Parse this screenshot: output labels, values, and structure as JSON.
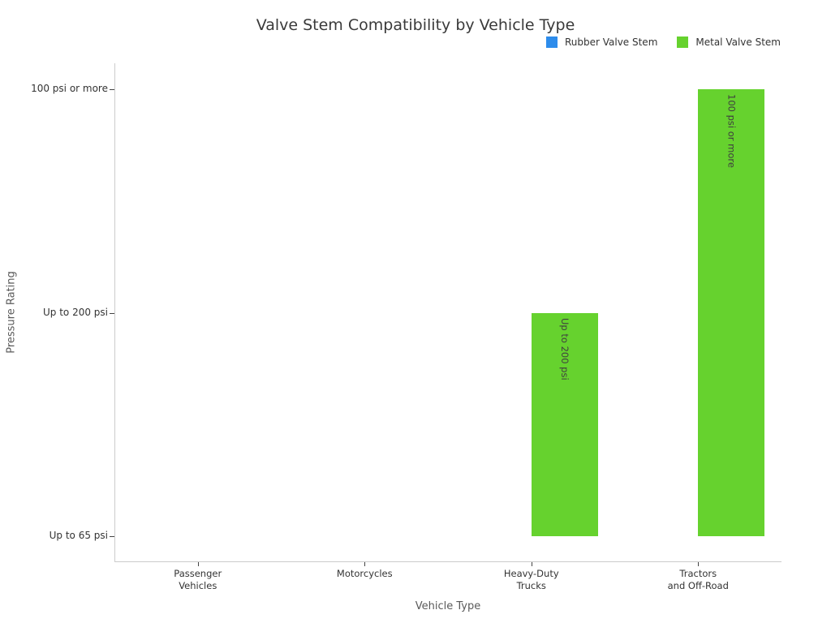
{
  "title": "Valve Stem Compatibility by Vehicle Type",
  "chart_data": {
    "type": "bar",
    "title": "Valve Stem Compatibility by Vehicle Type",
    "xlabel": "Vehicle Type",
    "ylabel": "Pressure Rating",
    "categories": [
      "Passenger Vehicles",
      "Motorcycles",
      "Heavy-Duty Trucks",
      "Tractors and Off-Road"
    ],
    "category_lines": [
      [
        "Passenger",
        "Vehicles"
      ],
      [
        "Motorcycles"
      ],
      [
        "Heavy-Duty",
        "Trucks"
      ],
      [
        "Tractors",
        "and Off-Road"
      ]
    ],
    "y_tick_labels": [
      "Up to 65 psi",
      "Up to 200 psi",
      "100 psi or more"
    ],
    "value_note": "values are indices into y_tick_labels; 0 = baseline (no visible bar)",
    "series": [
      {
        "name": "Rubber Valve Stem",
        "color": "#2d8ceb",
        "values": [
          0,
          0,
          0,
          0
        ],
        "bar_labels": [
          "",
          "",
          "",
          ""
        ]
      },
      {
        "name": "Metal Valve Stem",
        "color": "#66d22e",
        "values": [
          0,
          0,
          1,
          2
        ],
        "bar_labels": [
          "",
          "",
          "Up to 200 psi",
          "100 psi or more"
        ]
      }
    ],
    "ylim": [
      0,
      2
    ],
    "grid": false,
    "legend_position": "top-right"
  },
  "colors": {
    "background": "#ffffff",
    "spine": "#cccccc",
    "tick_text": "#333333",
    "axis_label_text": "#5a5a5a",
    "title_text": "#3a3a3a",
    "bar_label_text": "#3f3f3f"
  }
}
